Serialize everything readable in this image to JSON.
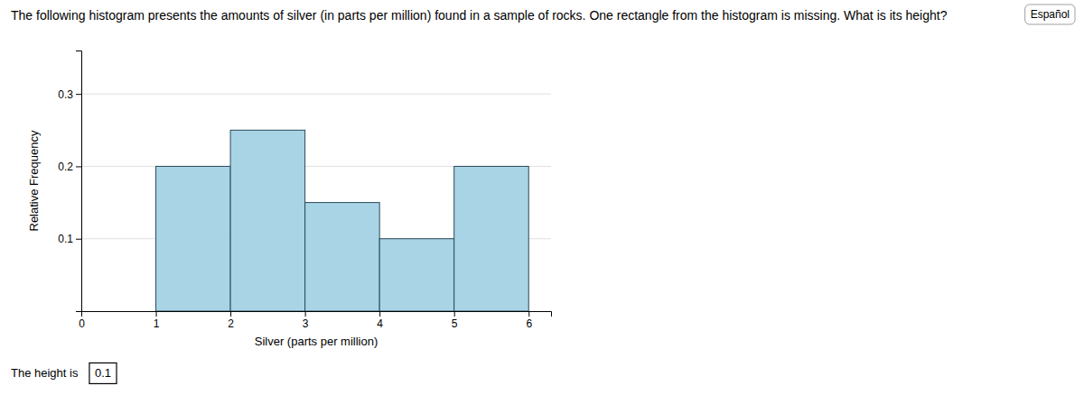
{
  "chart_data": {
    "type": "histogram",
    "title": "The following histogram presents the amounts of silver (in parts per million) found in a sample of rocks. One rectangle from the histogram is missing. What is its height?",
    "annotations": [
      "Español",
      "The height is",
      "0.1"
    ],
    "x_label": "Silver (parts per million)",
    "y_label": "Relative Frequency",
    "bins": [
      0,
      1,
      2,
      3,
      4,
      5,
      6
    ],
    "values": [
      0.0,
      0.2,
      0.25,
      0.15,
      0.1,
      0.2
    ],
    "color": "#a8d4e6",
    "xlim": [
      0,
      6.3
    ],
    "xticks": [
      0,
      1,
      2,
      3,
      4,
      5,
      6
    ],
    "ylim": [
      0,
      0.36
    ],
    "yticks": [
      0.1,
      0.2,
      0.3
    ],
    "grid": true
  }
}
